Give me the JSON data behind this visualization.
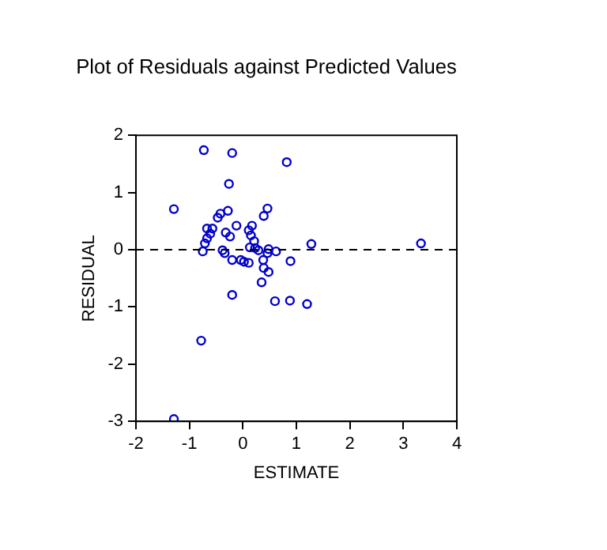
{
  "chart_data": {
    "type": "scatter",
    "title": "Plot of Residuals against Predicted Values",
    "xlabel": "ESTIMATE",
    "ylabel": "RESIDUAL",
    "xlim": [
      -2,
      4
    ],
    "xticks": [
      -2,
      -1,
      0,
      1,
      2,
      3,
      4
    ],
    "ylim": [
      -3,
      2
    ],
    "yticks": [
      -3,
      -2,
      -1,
      0,
      1,
      2
    ],
    "marker": "circle",
    "ref_lines": [
      {
        "axis": "y",
        "value": 0,
        "line_style": "dashed",
        "color": "#000000"
      }
    ],
    "series": [
      {
        "color": "#0000cc",
        "x": [
          -0.73,
          -0.2,
          0.82,
          -0.26,
          -1.29,
          -0.28,
          0.46,
          -0.42,
          -0.47,
          0.39,
          -0.12,
          0.17,
          -0.67,
          -0.57,
          -0.32,
          0.11,
          -0.61,
          -0.24,
          0.15,
          -0.67,
          -0.71,
          0.21,
          0.13,
          -0.75,
          -0.38,
          -0.34,
          0.23,
          0.29,
          0.48,
          0.62,
          0.46,
          0.38,
          -0.2,
          -0.04,
          0.02,
          0.11,
          0.89,
          0.39,
          0.48,
          0.35,
          -0.2,
          0.6,
          0.88,
          1.2,
          -0.78,
          -1.29,
          1.28,
          3.33
        ],
        "values": [
          1.74,
          1.69,
          1.53,
          1.15,
          0.71,
          0.68,
          0.72,
          0.63,
          0.56,
          0.59,
          0.42,
          0.42,
          0.37,
          0.37,
          0.3,
          0.34,
          0.28,
          0.23,
          0.25,
          0.2,
          0.11,
          0.15,
          0.04,
          -0.03,
          -0.01,
          -0.06,
          0.03,
          -0.01,
          0.01,
          -0.03,
          -0.06,
          -0.18,
          -0.18,
          -0.18,
          -0.21,
          -0.23,
          -0.2,
          -0.32,
          -0.39,
          -0.57,
          -0.79,
          -0.9,
          -0.89,
          -0.95,
          -1.59,
          -2.96,
          0.1,
          0.11
        ]
      }
    ]
  }
}
